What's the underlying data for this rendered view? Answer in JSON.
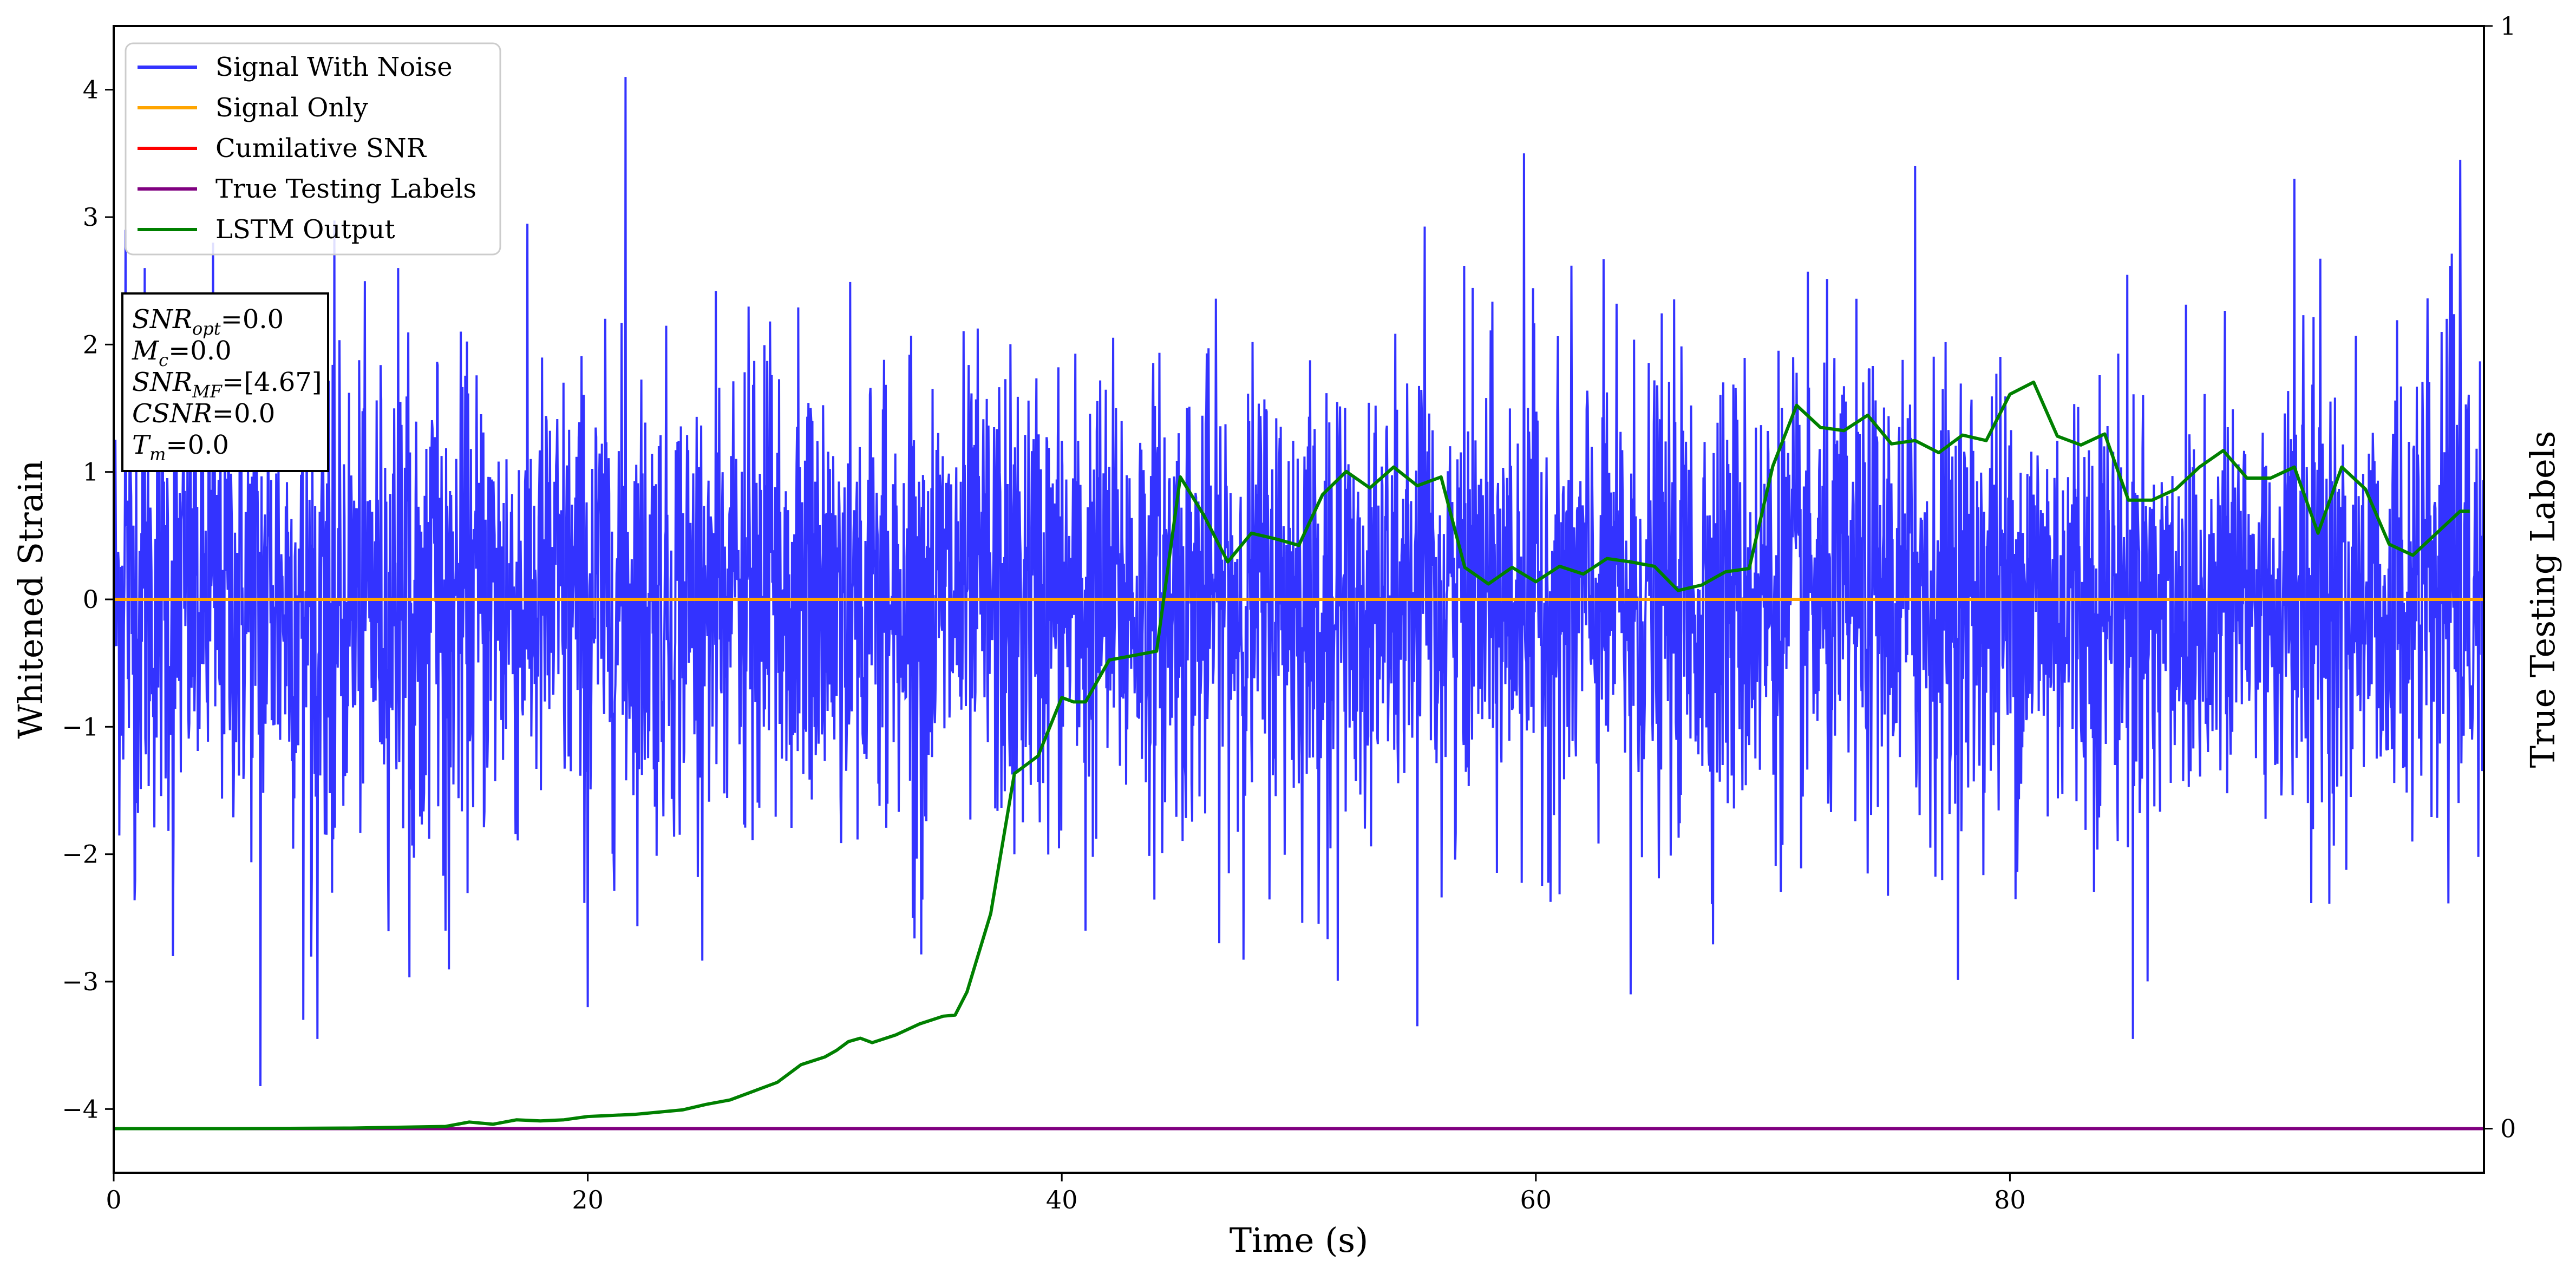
{
  "chart_data": {
    "type": "line",
    "xlabel": "Time (s)",
    "ylabel": "Whitened Strain",
    "y2label": "True Testing Labels",
    "xlim": [
      0,
      100
    ],
    "ylim": [
      -4.5,
      4.5
    ],
    "y2lim": [
      -0.04,
      1.0
    ],
    "x_ticks": [
      "0",
      "20",
      "40",
      "60",
      "80"
    ],
    "x_tick_values": [
      0,
      20,
      40,
      60,
      80
    ],
    "y_ticks": [
      "−4",
      "−3",
      "−2",
      "−1",
      "0",
      "1",
      "2",
      "3",
      "4"
    ],
    "y_tick_values": [
      -4,
      -3,
      -2,
      -1,
      0,
      1,
      2,
      3,
      4
    ],
    "y2_ticks": [
      "0",
      "1"
    ],
    "y2_tick_values": [
      0,
      1
    ],
    "grid": false,
    "legend_position": "top-left",
    "legend": [
      {
        "label": "Signal With Noise",
        "color": "#3333ff"
      },
      {
        "label": "Signal Only",
        "color": "#ffa500"
      },
      {
        "label": "Cumilative SNR",
        "color": "#ff0000"
      },
      {
        "label": "True Testing Labels",
        "color": "#800080"
      },
      {
        "label": "LSTM Output",
        "color": "#008000"
      }
    ],
    "info_box": [
      {
        "base": "SNR",
        "sub": "opt",
        "value": "=0.0"
      },
      {
        "base": "M",
        "sub": "c",
        "value": "=0.0"
      },
      {
        "base": "SNR",
        "sub": "MF",
        "value": "=[4.67]"
      },
      {
        "base": "CSNR",
        "sub": "",
        "value": "=0.0"
      },
      {
        "base": "T",
        "sub": "m",
        "value": "=0.0"
      }
    ],
    "series": [
      {
        "name": "Signal With Noise",
        "color": "#3333ff",
        "kind": "noise",
        "approx_std": 0.9,
        "peaks": [
          [
            0.5,
            2.9
          ],
          [
            0.9,
            -2.2
          ],
          [
            1.3,
            2.6
          ],
          [
            2.5,
            -2.8
          ],
          [
            4.2,
            2.8
          ],
          [
            6.2,
            -3.82
          ],
          [
            8.0,
            -3.3
          ],
          [
            8.6,
            -3.45
          ],
          [
            12.0,
            2.6
          ],
          [
            14.0,
            -2.6
          ],
          [
            20.0,
            -3.2
          ],
          [
            21.6,
            4.1
          ],
          [
            38.0,
            -2.0
          ],
          [
            41.0,
            -2.6
          ],
          [
            55.0,
            -3.35
          ],
          [
            59.5,
            3.5
          ],
          [
            64.0,
            -3.1
          ],
          [
            76.0,
            3.4
          ],
          [
            85.2,
            -3.45
          ],
          [
            92.0,
            3.3
          ],
          [
            99.0,
            3.45
          ],
          [
            99.5,
            -1.1
          ]
        ]
      },
      {
        "name": "Signal Only",
        "color": "#ffa500",
        "x": [
          0,
          100
        ],
        "y": [
          0,
          0
        ]
      },
      {
        "name": "True Testing Labels",
        "color": "#800080",
        "axis": "right",
        "x": [
          0,
          100
        ],
        "y": [
          0,
          0
        ]
      },
      {
        "name": "LSTM Output",
        "color": "#008000",
        "axis": "right",
        "x": [
          0,
          5,
          10,
          14,
          15,
          16,
          17,
          18,
          19,
          20,
          21,
          22,
          23,
          24,
          25,
          26,
          27,
          28,
          29,
          30,
          30.5,
          31,
          31.5,
          32,
          33,
          34,
          35,
          35.5,
          36,
          37,
          38,
          39,
          40,
          40.5,
          41,
          42,
          43,
          44,
          45,
          46,
          47,
          48,
          49,
          50,
          51,
          52,
          53,
          54,
          55,
          56,
          57,
          58,
          59,
          60,
          61,
          62,
          63,
          64,
          65,
          66,
          67,
          68,
          69,
          70,
          71,
          72,
          73,
          74,
          75,
          76,
          77,
          78,
          79,
          80,
          81,
          82,
          83,
          84,
          85,
          86,
          87,
          88,
          89,
          90,
          91,
          92,
          93,
          94,
          95,
          96,
          97,
          98,
          99,
          99.4
        ],
        "y": [
          0.0,
          0.0,
          0.0005,
          0.002,
          0.006,
          0.004,
          0.008,
          0.007,
          0.008,
          0.011,
          0.012,
          0.013,
          0.015,
          0.017,
          0.022,
          0.026,
          0.034,
          0.042,
          0.058,
          0.065,
          0.071,
          0.079,
          0.082,
          0.078,
          0.085,
          0.095,
          0.102,
          0.103,
          0.124,
          0.195,
          0.322,
          0.338,
          0.391,
          0.387,
          0.387,
          0.425,
          0.429,
          0.433,
          0.591,
          0.556,
          0.514,
          0.54,
          0.535,
          0.529,
          0.575,
          0.596,
          0.581,
          0.6,
          0.583,
          0.591,
          0.509,
          0.494,
          0.509,
          0.496,
          0.51,
          0.503,
          0.517,
          0.514,
          0.51,
          0.488,
          0.493,
          0.505,
          0.508,
          0.601,
          0.656,
          0.636,
          0.633,
          0.647,
          0.621,
          0.624,
          0.613,
          0.629,
          0.624,
          0.666,
          0.677,
          0.628,
          0.62,
          0.63,
          0.57,
          0.57,
          0.58,
          0.6,
          0.615,
          0.59,
          0.59,
          0.6,
          0.54,
          0.6,
          0.58,
          0.53,
          0.52,
          0.54,
          0.56,
          0.56
        ]
      }
    ]
  }
}
